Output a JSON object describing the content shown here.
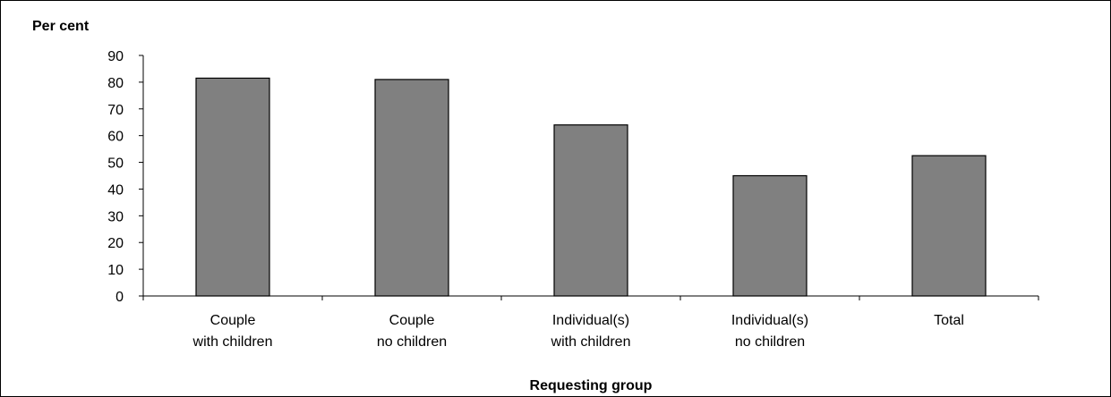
{
  "chart_data": {
    "type": "bar",
    "title": "",
    "ylabel": "Per cent",
    "xlabel": "Requesting group",
    "categories": [
      [
        "Couple",
        "with children"
      ],
      [
        "Couple",
        "no children"
      ],
      [
        "Individual(s)",
        "with children"
      ],
      [
        "Individual(s)",
        "no children"
      ],
      [
        "Total"
      ]
    ],
    "values": [
      81.5,
      81,
      64,
      45,
      52.5
    ],
    "ylim": [
      0,
      90
    ],
    "yticks": [
      0,
      10,
      20,
      30,
      40,
      50,
      60,
      70,
      80,
      90
    ],
    "grid": false,
    "legend": "none",
    "bar_color": "#808080",
    "bar_edge_color": "#000000"
  }
}
